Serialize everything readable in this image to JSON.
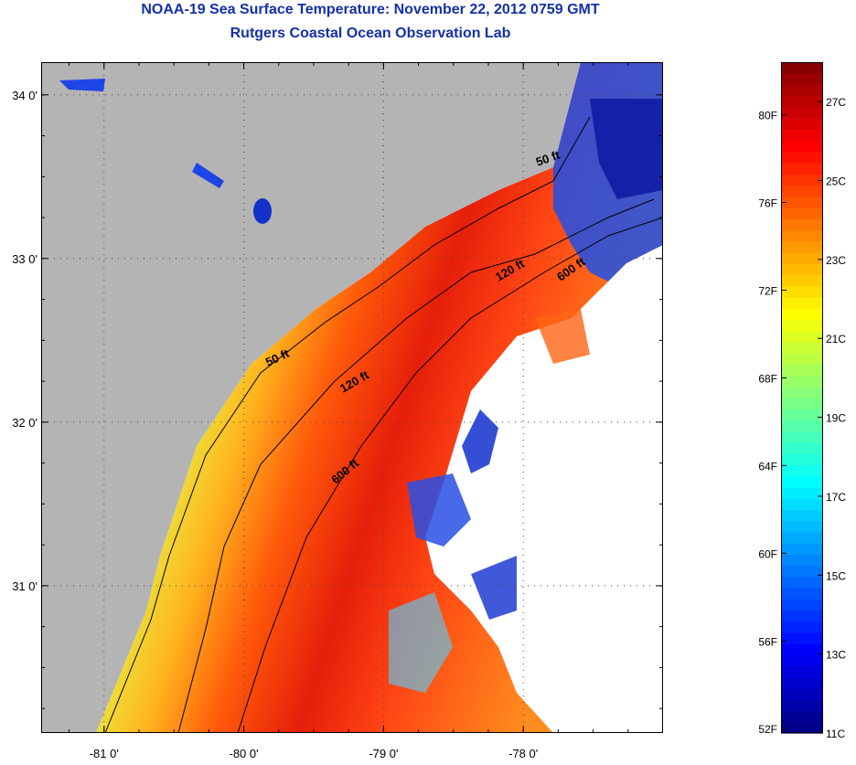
{
  "header": {
    "title": "NOAA-19 Sea Surface Temperature:  November 22, 2012 0759 GMT",
    "subtitle": "Rutgers Coastal Ocean Observation Lab"
  },
  "map": {
    "lon_range": [
      -81.45,
      -77.0
    ],
    "lat_range": [
      30.1,
      34.2
    ],
    "lon_ticks": [
      {
        "value": -81,
        "label": "-81 0'"
      },
      {
        "value": -80,
        "label": "-80 0'"
      },
      {
        "value": -79,
        "label": "-79 0'"
      },
      {
        "value": -78,
        "label": "-78 0'"
      }
    ],
    "lat_ticks": [
      {
        "value": 34,
        "label": "34 0'"
      },
      {
        "value": 33,
        "label": "33 0'"
      },
      {
        "value": 32,
        "label": "32 0'"
      },
      {
        "value": 31,
        "label": "31 0'"
      }
    ],
    "isobath_labels": [
      "50 ft",
      "120 ft",
      "600 ft",
      "50 ft",
      "120 ft",
      "600 ft"
    ],
    "colors": {
      "land": "#b4b4b4",
      "no_data": "#ffffff",
      "gridline": "#404040",
      "isobath": "#000000"
    }
  },
  "colorbar": {
    "range_c": [
      11,
      28
    ],
    "celsius_labels": [
      {
        "value": 27,
        "label": "27C"
      },
      {
        "value": 25,
        "label": "25C"
      },
      {
        "value": 23,
        "label": "23C"
      },
      {
        "value": 21,
        "label": "21C"
      },
      {
        "value": 19,
        "label": "19C"
      },
      {
        "value": 17,
        "label": "17C"
      },
      {
        "value": 15,
        "label": "15C"
      },
      {
        "value": 13,
        "label": "13C"
      },
      {
        "value": 11,
        "label": "11C"
      }
    ],
    "fahrenheit_labels": [
      {
        "value": 80,
        "label": "80F"
      },
      {
        "value": 76,
        "label": "76F"
      },
      {
        "value": 72,
        "label": "72F"
      },
      {
        "value": 68,
        "label": "68F"
      },
      {
        "value": 64,
        "label": "64F"
      },
      {
        "value": 60,
        "label": "60F"
      },
      {
        "value": 56,
        "label": "56F"
      },
      {
        "value": 52,
        "label": "52F"
      }
    ]
  }
}
